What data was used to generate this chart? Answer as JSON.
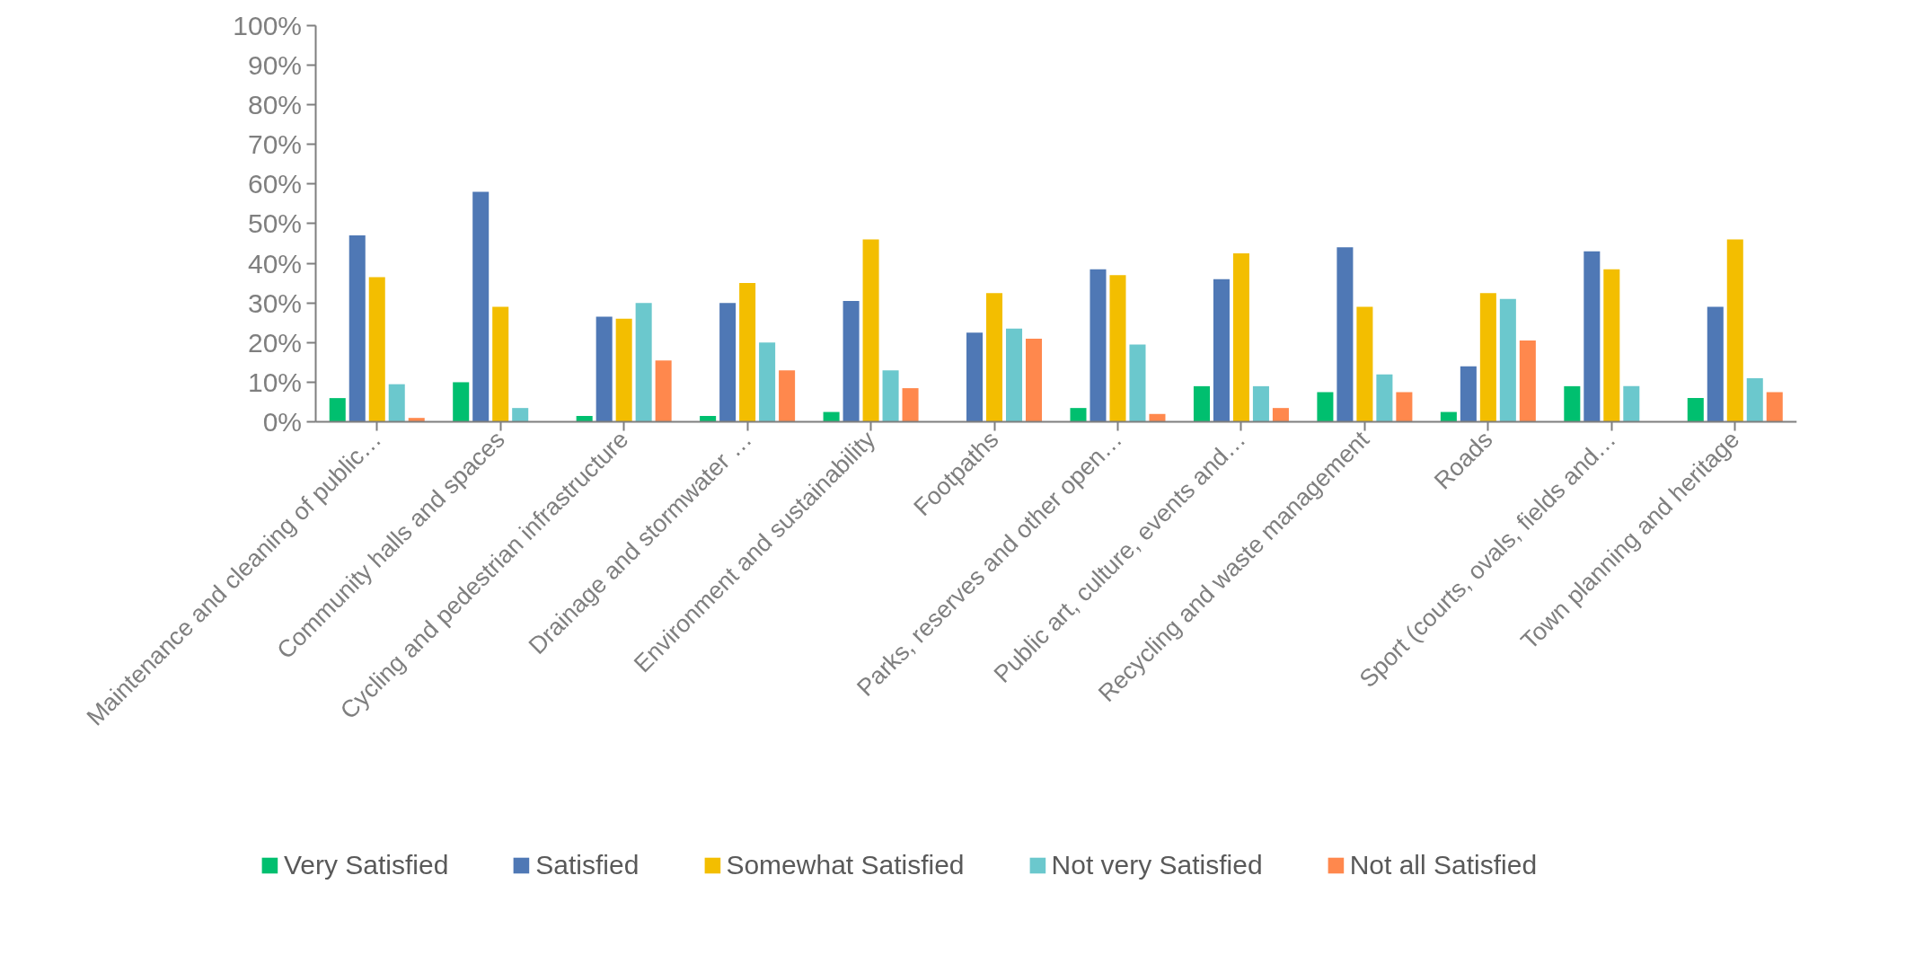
{
  "chart_data": {
    "type": "bar",
    "categories": [
      "Maintenance and cleaning of public…",
      "Community halls and spaces",
      "Cycling and pedestrian infrastructure",
      "Drainage and stormwater …",
      "Environment and sustainability",
      "Footpaths",
      "Parks, reserves and other open…",
      "Public art, culture, events and…",
      "Recycling and waste management",
      "Roads",
      "Sport (courts, ovals, fields and…",
      "Town planning and heritage"
    ],
    "series": [
      {
        "name": "Very Satisfied",
        "color": "#00bf6f",
        "values": [
          6,
          10,
          1.5,
          1.5,
          2.5,
          null,
          3.5,
          9,
          7.5,
          2.5,
          9,
          6
        ]
      },
      {
        "name": "Satisfied",
        "color": "#4f78b5",
        "values": [
          47,
          58,
          26.5,
          30,
          30.5,
          22.5,
          38.5,
          36,
          44,
          14,
          43,
          29
        ]
      },
      {
        "name": "Somewhat Satisfied",
        "color": "#f3be00",
        "values": [
          36.5,
          29,
          26,
          35,
          46,
          32.5,
          37,
          42.5,
          29,
          32.5,
          38.5,
          46
        ]
      },
      {
        "name": "Not very Satisfied",
        "color": "#6bc8cd",
        "values": [
          9.5,
          3.5,
          30,
          20,
          13,
          23.5,
          19.5,
          9,
          12,
          31,
          9,
          11
        ]
      },
      {
        "name": "Not all Satisfied",
        "color": "#ff884d",
        "values": [
          1,
          null,
          15.5,
          13,
          8.5,
          21,
          2,
          3.5,
          7.5,
          20.5,
          null,
          7.5
        ]
      }
    ],
    "ylim": [
      0,
      100
    ],
    "yticks": [
      {
        "value": 0,
        "label": "0%"
      },
      {
        "value": 10,
        "label": "10%"
      },
      {
        "value": 20,
        "label": "20%"
      },
      {
        "value": 30,
        "label": "30%"
      },
      {
        "value": 40,
        "label": "40%"
      },
      {
        "value": 50,
        "label": "50%"
      },
      {
        "value": 60,
        "label": "60%"
      },
      {
        "value": 70,
        "label": "70%"
      },
      {
        "value": 80,
        "label": "80%"
      },
      {
        "value": 90,
        "label": "90%"
      },
      {
        "value": 100,
        "label": "100%"
      }
    ],
    "grid": false,
    "legend": "bottom"
  }
}
